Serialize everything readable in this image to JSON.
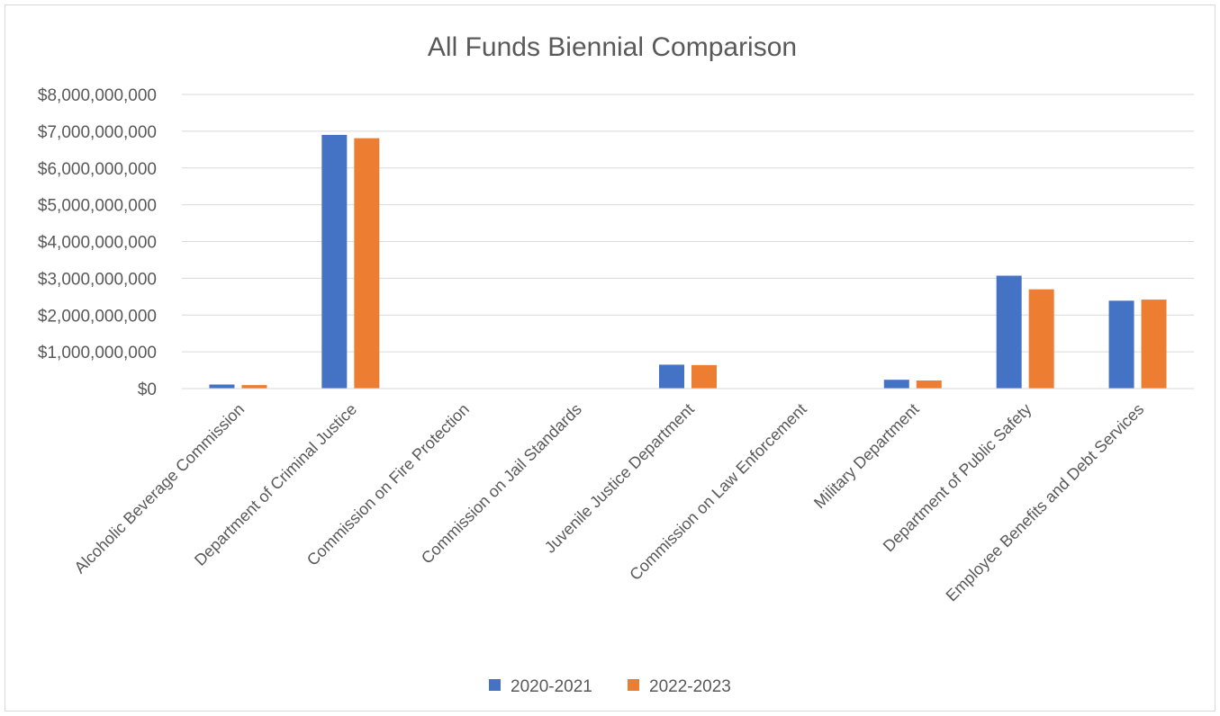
{
  "chart_data": {
    "type": "bar",
    "title": "All Funds Biennial Comparison",
    "xlabel": "",
    "ylabel": "",
    "ylim": [
      0,
      8000000000
    ],
    "y_ticks": [
      {
        "value": 0,
        "label": "$0"
      },
      {
        "value": 1000000000,
        "label": "$1,000,000,000"
      },
      {
        "value": 2000000000,
        "label": "$2,000,000,000"
      },
      {
        "value": 3000000000,
        "label": "$3,000,000,000"
      },
      {
        "value": 4000000000,
        "label": "$4,000,000,000"
      },
      {
        "value": 5000000000,
        "label": "$5,000,000,000"
      },
      {
        "value": 6000000000,
        "label": "$6,000,000,000"
      },
      {
        "value": 7000000000,
        "label": "$7,000,000,000"
      },
      {
        "value": 8000000000,
        "label": "$8,000,000,000"
      }
    ],
    "grid": true,
    "legend_position": "bottom",
    "categories": [
      "Alcoholic Beverage Commission",
      "Department of Criminal Justice",
      "Commission on Fire Protection",
      "Commission on Jail Standards",
      "Juvenile Justice Department",
      "Commission on Law Enforcement",
      "Military Department",
      "Department of Public Safety",
      "Employee Benefits and Debt Services"
    ],
    "series": [
      {
        "name": "2020-2021",
        "color": "#4472C4",
        "values": [
          110000000,
          6900000000,
          5000000,
          2000000,
          650000000,
          10000000,
          240000000,
          3070000000,
          2390000000
        ]
      },
      {
        "name": "2022-2023",
        "color": "#ED7D31",
        "values": [
          95000000,
          6810000000,
          4000000,
          2000000,
          640000000,
          9000000,
          220000000,
          2700000000,
          2420000000
        ]
      }
    ]
  }
}
